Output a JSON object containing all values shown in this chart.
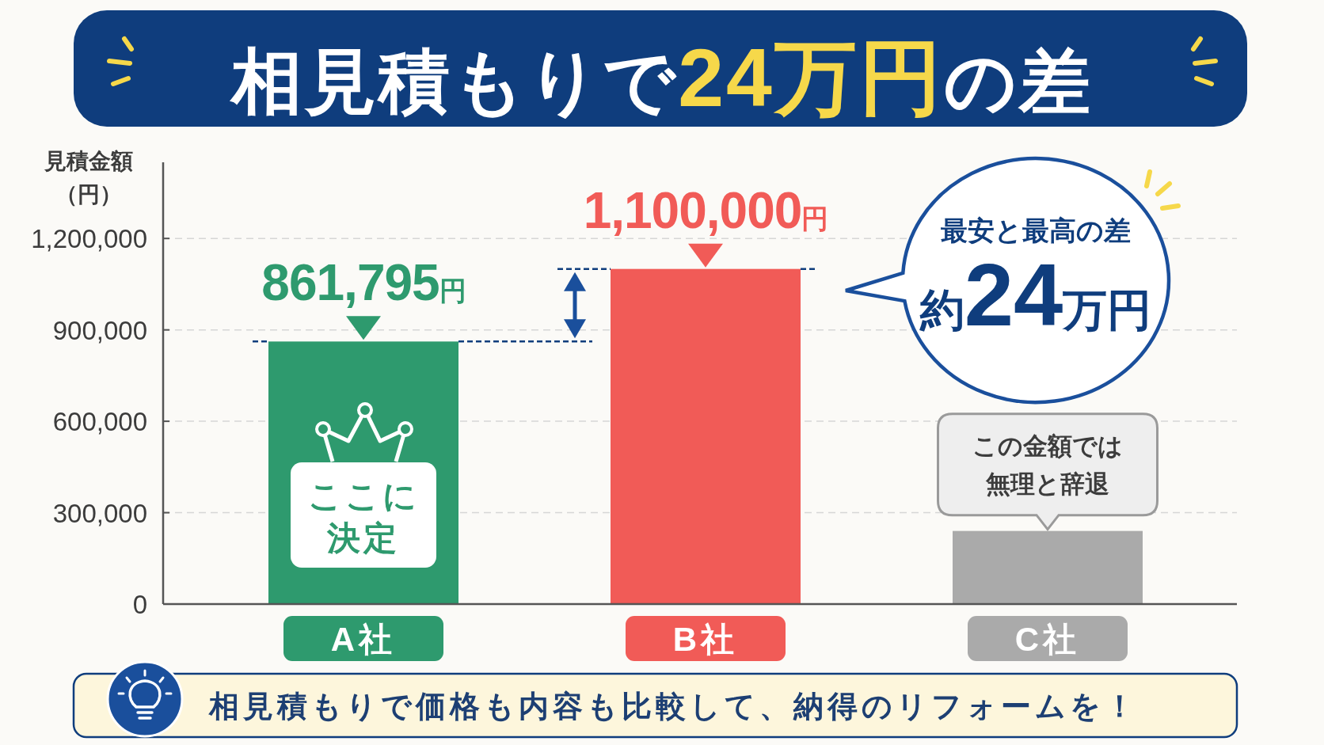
{
  "chart_data": {
    "type": "bar",
    "title": "相見積もりで24万円の差",
    "ylabel": "見積金額（円）",
    "categories": [
      "A社",
      "B社",
      "C社"
    ],
    "values": [
      861795,
      1100000,
      240000
    ],
    "colors": [
      "#2e9a6e",
      "#f15b57",
      "#aaaaaa"
    ],
    "value_labels": [
      "861,795円",
      "1,100,000円",
      null
    ],
    "ylim": [
      0,
      1450000
    ],
    "yticks": [
      0,
      {
        "value": 300000,
        "label": "300,000"
      },
      {
        "value": 600000,
        "label": "600,000"
      },
      {
        "value": 900000,
        "label": "900,000"
      },
      {
        "value": 1200000,
        "label": "1,200,000"
      }
    ],
    "grid": "y",
    "annotations": [
      "最安と最高の差約24万円",
      {
        "text": "この金額では無理と辞退",
        "x": "C社",
        "y": 240000
      },
      "ここに決定",
      "相見積もりで価格も内容も比較して、納得のリフォームを！"
    ]
  }
}
